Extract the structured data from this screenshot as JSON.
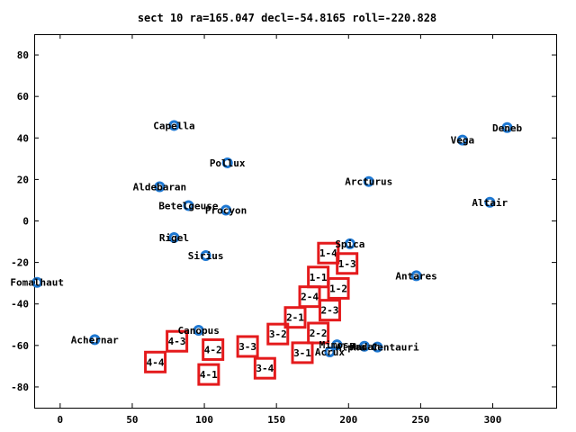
{
  "chart_data": {
    "type": "scatter",
    "title": "sect 10 ra=165.047 decl=-54.8165 roll=-220.828",
    "xlabel": "",
    "ylabel": "",
    "xlim": [
      -18,
      344
    ],
    "ylim": [
      -90,
      90
    ],
    "x_ticks": [
      0,
      50,
      100,
      150,
      200,
      250,
      300
    ],
    "y_ticks": [
      -80,
      -60,
      -40,
      -20,
      0,
      20,
      40,
      60,
      80
    ],
    "grid": false,
    "colors": {
      "stars": "#1e78d2",
      "sectors": "#e41a1c"
    },
    "stars": [
      {
        "name": "Capella",
        "x": 79,
        "y": 46
      },
      {
        "name": "Deneb",
        "x": 310,
        "y": 45
      },
      {
        "name": "Vega",
        "x": 279,
        "y": 39
      },
      {
        "name": "Pollux",
        "x": 116,
        "y": 28
      },
      {
        "name": "Aldebaran",
        "x": 69,
        "y": 16.5
      },
      {
        "name": "Arcturus",
        "x": 214,
        "y": 19
      },
      {
        "name": "Altair",
        "x": 298,
        "y": 9
      },
      {
        "name": "Betelgeuse",
        "x": 89,
        "y": 7.4
      },
      {
        "name": "Procyon",
        "x": 115,
        "y": 5.2
      },
      {
        "name": "Rigel",
        "x": 79,
        "y": -8
      },
      {
        "name": "Spica",
        "x": 201,
        "y": -11
      },
      {
        "name": "Sirius",
        "x": 101,
        "y": -16.7
      },
      {
        "name": "Fomalhaut",
        "x": -16,
        "y": -29.6
      },
      {
        "name": "Antares",
        "x": 247,
        "y": -26.4
      },
      {
        "name": "Canopus",
        "x": 96,
        "y": -52.7
      },
      {
        "name": "Achernar",
        "x": 24,
        "y": -57.2
      },
      {
        "name": "Hadar",
        "x": 211,
        "y": -60.4
      },
      {
        "name": "Alpha Centauri",
        "x": 220,
        "y": -60.8
      },
      {
        "name": "Mimosa",
        "x": 192,
        "y": -59.7
      },
      {
        "name": "Acrux",
        "x": 187,
        "y": -63.1
      }
    ],
    "sectors": [
      {
        "label": "1-4",
        "x": 186,
        "y": -15.5
      },
      {
        "label": "1-3",
        "x": 199,
        "y": -20.5
      },
      {
        "label": "1-1",
        "x": 179,
        "y": -27
      },
      {
        "label": "1-2",
        "x": 193,
        "y": -32.5
      },
      {
        "label": "2-4",
        "x": 173,
        "y": -36.5
      },
      {
        "label": "2-3",
        "x": 187,
        "y": -43
      },
      {
        "label": "2-1",
        "x": 163,
        "y": -46.5
      },
      {
        "label": "2-2",
        "x": 179,
        "y": -54
      },
      {
        "label": "3-2",
        "x": 151,
        "y": -54.5
      },
      {
        "label": "3-3",
        "x": 130,
        "y": -60.5
      },
      {
        "label": "3-1",
        "x": 168,
        "y": -63.5
      },
      {
        "label": "4-3",
        "x": 81,
        "y": -58
      },
      {
        "label": "4-2",
        "x": 106,
        "y": -62
      },
      {
        "label": "4-4",
        "x": 66,
        "y": -68
      },
      {
        "label": "3-4",
        "x": 142,
        "y": -71
      },
      {
        "label": "4-1",
        "x": 103,
        "y": -74
      }
    ]
  }
}
